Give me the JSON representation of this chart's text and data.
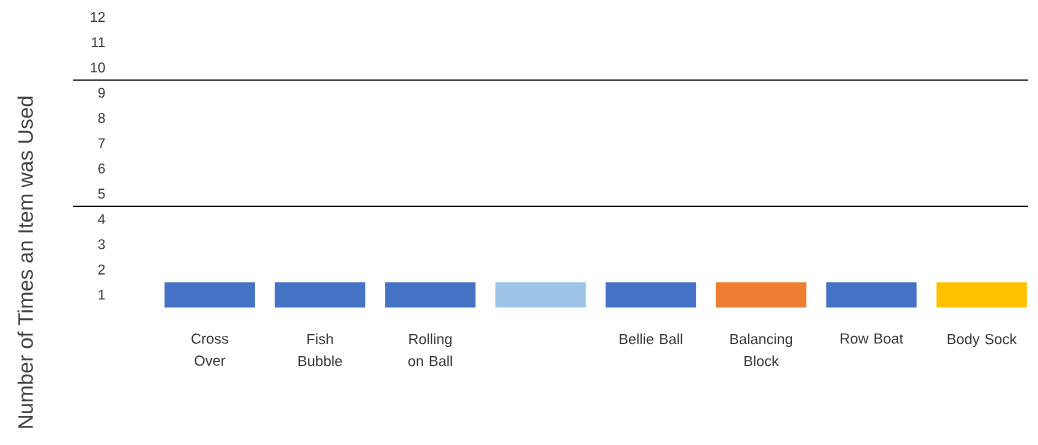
{
  "chart_data": {
    "type": "bar",
    "ylabel": "Number of Times an Item was Used",
    "categories": [
      "Cross Over",
      "Fish Bubble",
      "Rolling on Ball",
      null,
      "Bellie Ball",
      "Balancing Block",
      "Row Boat",
      "Body Sock"
    ],
    "values": [
      1,
      1,
      1,
      1,
      1,
      1,
      1,
      1
    ],
    "base": [
      0.5,
      0.5,
      0.5,
      0.5,
      0.5,
      0.5,
      0.5,
      0.5
    ],
    "colors": [
      "#4472c4",
      "#4472c4",
      "#4472c4",
      "#9dc3e6",
      "#4472c4",
      "#ed7d31",
      "#4472c4",
      "#ffc000"
    ],
    "ylim": [
      0,
      12
    ],
    "yticks": [
      1,
      2,
      3,
      4,
      5,
      6,
      7,
      8,
      9,
      10,
      11,
      12
    ],
    "ref_lines": [
      {
        "axis": "y",
        "value": 9.5,
        "color": "#000000"
      },
      {
        "axis": "y",
        "value": 4.5,
        "color": "#000000"
      }
    ],
    "grid": false
  }
}
